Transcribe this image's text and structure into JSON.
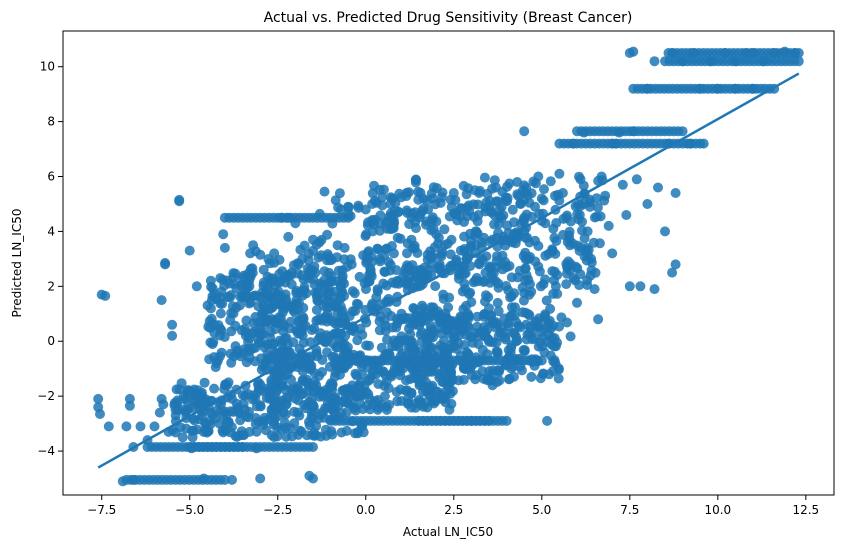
{
  "chart_data": {
    "type": "scatter",
    "title": "Actual vs. Predicted Drug Sensitivity (Breast Cancer)",
    "xlabel": "Actual LN_IC50",
    "ylabel": "Predicted LN_IC50",
    "xlim": [
      -8.6,
      13.3
    ],
    "ylim": [
      -5.6,
      11.3
    ],
    "xticks": [
      -7.5,
      -5.0,
      -2.5,
      0.0,
      2.5,
      5.0,
      7.5,
      10.0,
      12.5
    ],
    "xtick_labels": [
      "−7.5",
      "−5.0",
      "−2.5",
      "0.0",
      "2.5",
      "5.0",
      "7.5",
      "10.0",
      "12.5"
    ],
    "yticks": [
      -4,
      -2,
      0,
      2,
      4,
      6,
      8,
      10
    ],
    "ytick_labels": [
      "−4",
      "−2",
      "0",
      "2",
      "4",
      "6",
      "8",
      "10"
    ],
    "grid": false,
    "point_color": "#1f77b4",
    "line_color": "#1f77b4",
    "regression_line": {
      "x": [
        -7.6,
        12.3
      ],
      "y": [
        -4.6,
        9.75
      ]
    },
    "series": [
      {
        "points": [
          [
            -7.5,
            1.7
          ],
          [
            -7.4,
            1.65
          ],
          [
            -7.6,
            -2.1
          ],
          [
            -7.6,
            -2.4
          ],
          [
            -7.55,
            -2.65
          ],
          [
            -7.3,
            -3.1
          ],
          [
            -6.7,
            -2.1
          ],
          [
            -6.7,
            -2.35
          ],
          [
            -6.8,
            -3.1
          ],
          [
            -6.9,
            -5.1
          ],
          [
            -6.6,
            -5.05
          ],
          [
            -6.6,
            -3.85
          ],
          [
            -6.4,
            -3.1
          ],
          [
            -6.2,
            -3.6
          ],
          [
            -6.0,
            -3.1
          ],
          [
            -5.8,
            -2.1
          ],
          [
            -5.75,
            -2.3
          ],
          [
            -5.85,
            -2.6
          ],
          [
            -5.8,
            1.5
          ],
          [
            -5.7,
            2.8
          ],
          [
            -5.7,
            2.85
          ],
          [
            -5.5,
            0.6
          ],
          [
            -5.5,
            0.2
          ],
          [
            -5.6,
            -3.3
          ],
          [
            -5.4,
            -2.7
          ],
          [
            -5.3,
            5.1
          ],
          [
            -5.3,
            5.15
          ],
          [
            -5.2,
            -3.5
          ],
          [
            -5.1,
            -2.8
          ],
          [
            -4.95,
            -3.9
          ],
          [
            -4.7,
            -2.5
          ],
          [
            -4.6,
            -3.3
          ],
          [
            -4.4,
            -2.6
          ],
          [
            -4.3,
            0.6
          ],
          [
            -4.3,
            0.3
          ],
          [
            -4.2,
            -0.7
          ],
          [
            -4.1,
            1.8
          ],
          [
            -4.05,
            3.9
          ],
          [
            -4.0,
            3.4
          ],
          [
            -4.1,
            0.4
          ],
          [
            -3.9,
            -1.5
          ],
          [
            -3.8,
            -2.1
          ],
          [
            -3.6,
            -2.6
          ],
          [
            -3.5,
            2.3
          ],
          [
            -3.4,
            1.6
          ],
          [
            -3.3,
            -0.6
          ],
          [
            -3.3,
            -3.3
          ],
          [
            -3.1,
            -3.9
          ],
          [
            -3.0,
            0.4
          ],
          [
            -2.9,
            2.6
          ],
          [
            -2.8,
            1.9
          ],
          [
            -2.7,
            1.2
          ],
          [
            -2.6,
            -1.2
          ],
          [
            -2.5,
            -2.4
          ],
          [
            -2.4,
            4.5
          ],
          [
            -2.2,
            4.5
          ],
          [
            -2.0,
            4.3
          ],
          [
            -2.1,
            2.5
          ],
          [
            -1.9,
            1.4
          ],
          [
            -1.7,
            -0.8
          ],
          [
            -1.6,
            -2.2
          ],
          [
            -1.5,
            -5.0
          ],
          [
            -1.6,
            -4.9
          ],
          [
            -1.5,
            3.7
          ],
          [
            -1.3,
            2.1
          ],
          [
            -1.2,
            1.5
          ],
          [
            -1.1,
            -0.4
          ],
          [
            -0.9,
            -2.8
          ],
          [
            -0.8,
            3.5
          ],
          [
            -0.7,
            4.8
          ],
          [
            -0.5,
            4.9
          ],
          [
            -0.4,
            2.8
          ],
          [
            -0.3,
            1.1
          ],
          [
            -0.2,
            -1.6
          ],
          [
            -0.1,
            -3.1
          ],
          [
            0.0,
            4.8
          ],
          [
            0.2,
            4.0
          ],
          [
            0.3,
            1.6
          ],
          [
            0.4,
            0.4
          ],
          [
            0.5,
            -1.1
          ],
          [
            0.6,
            -2.5
          ],
          [
            0.7,
            5.0
          ],
          [
            0.8,
            3.2
          ],
          [
            0.9,
            2.2
          ],
          [
            1.0,
            0.8
          ],
          [
            1.1,
            -0.8
          ],
          [
            1.2,
            -2.1
          ],
          [
            1.3,
            3.7
          ],
          [
            1.4,
            4.7
          ],
          [
            1.5,
            2.4
          ],
          [
            1.6,
            1.3
          ],
          [
            1.7,
            -0.4
          ],
          [
            1.8,
            -1.8
          ],
          [
            1.9,
            5.2
          ],
          [
            2.0,
            3.9
          ],
          [
            2.1,
            2.8
          ],
          [
            2.2,
            1.7
          ],
          [
            2.3,
            0.4
          ],
          [
            2.4,
            -1.0
          ],
          [
            2.5,
            5.4
          ],
          [
            2.6,
            4.4
          ],
          [
            2.7,
            3.3
          ],
          [
            2.8,
            2.1
          ],
          [
            2.9,
            0.9
          ],
          [
            3.0,
            -2.9
          ],
          [
            3.1,
            5.5
          ],
          [
            3.2,
            4.6
          ],
          [
            3.3,
            3.6
          ],
          [
            3.4,
            2.5
          ],
          [
            3.5,
            1.2
          ],
          [
            3.6,
            -1.6
          ],
          [
            3.7,
            5.6
          ],
          [
            3.8,
            4.8
          ],
          [
            3.9,
            3.8
          ],
          [
            4.0,
            2.7
          ],
          [
            4.1,
            1.6
          ],
          [
            4.2,
            0.3
          ],
          [
            4.3,
            5.8
          ],
          [
            4.4,
            5.0
          ],
          [
            4.5,
            4.0
          ],
          [
            4.6,
            3.0
          ],
          [
            4.7,
            1.8
          ],
          [
            4.8,
            0.7
          ],
          [
            4.9,
            6.0
          ],
          [
            5.0,
            5.2
          ],
          [
            5.1,
            4.3
          ],
          [
            5.15,
            -2.9
          ],
          [
            5.3,
            3.3
          ],
          [
            5.4,
            2.0
          ],
          [
            5.5,
            6.1
          ],
          [
            5.6,
            5.4
          ],
          [
            5.7,
            4.5
          ],
          [
            5.8,
            3.5
          ],
          [
            5.9,
            2.3
          ],
          [
            6.0,
            1.4
          ],
          [
            6.1,
            5.9
          ],
          [
            6.2,
            5.0
          ],
          [
            6.3,
            4.0
          ],
          [
            6.4,
            3.0
          ],
          [
            6.5,
            1.9
          ],
          [
            6.6,
            0.8
          ],
          [
            6.7,
            6.0
          ],
          [
            6.8,
            5.3
          ],
          [
            6.9,
            4.2
          ],
          [
            7.0,
            3.2
          ],
          [
            7.1,
            7.2
          ],
          [
            7.2,
            7.6
          ],
          [
            7.3,
            5.7
          ],
          [
            7.4,
            4.6
          ],
          [
            7.5,
            2.0
          ],
          [
            7.6,
            7.65
          ],
          [
            7.7,
            5.9
          ],
          [
            7.8,
            2.0
          ],
          [
            8.0,
            5.0
          ],
          [
            8.2,
            1.9
          ],
          [
            8.3,
            5.6
          ],
          [
            8.5,
            4.0
          ],
          [
            8.6,
            7.2
          ],
          [
            8.8,
            5.4
          ],
          [
            8.8,
            2.8
          ],
          [
            8.7,
            2.5
          ],
          [
            9.2,
            7.2
          ],
          [
            9.6,
            7.2
          ],
          [
            7.5,
            10.5
          ],
          [
            7.6,
            10.55
          ],
          [
            8.2,
            10.2
          ],
          [
            8.7,
            10.5
          ],
          [
            9.0,
            10.2
          ],
          [
            9.3,
            10.5
          ],
          [
            9.8,
            10.2
          ],
          [
            10.2,
            10.5
          ],
          [
            10.5,
            10.2
          ],
          [
            10.8,
            10.5
          ],
          [
            11.0,
            10.5
          ],
          [
            11.3,
            10.2
          ],
          [
            11.6,
            10.5
          ],
          [
            11.9,
            10.55
          ],
          [
            12.2,
            10.5
          ],
          [
            8.0,
            9.2
          ],
          [
            9.5,
            9.2
          ],
          [
            10.0,
            9.2
          ],
          [
            10.5,
            9.2
          ],
          [
            11.0,
            9.2
          ],
          [
            7.0,
            7.2
          ],
          [
            6.2,
            7.6
          ],
          [
            5.9,
            7.2
          ],
          [
            4.5,
            7.65
          ],
          [
            -4.6,
            -5.0
          ],
          [
            -3.8,
            -5.05
          ],
          [
            -3.0,
            -5.0
          ],
          [
            -5.0,
            3.3
          ],
          [
            -4.8,
            2.0
          ],
          [
            -3.2,
            3.5
          ],
          [
            -2.6,
            3.2
          ],
          [
            -2.2,
            3.8
          ],
          [
            -1.8,
            3.0
          ],
          [
            -0.6,
            3.4
          ],
          [
            0.4,
            3.0
          ]
        ],
        "clusters": [
          {
            "x": [
              -1.5,
              6.0
            ],
            "y": [
              0.0,
              5.5
            ]
          },
          {
            "x": [
              0.0,
              6.8
            ],
            "y": [
              2.0,
              6.0
            ]
          },
          {
            "x": [
              -3.5,
              3.0
            ],
            "y": [
              -0.5,
              3.5
            ]
          },
          {
            "x": [
              -5.5,
              0.0
            ],
            "y": [
              -3.5,
              -1.5
            ]
          },
          {
            "x": [
              -3.0,
              2.5
            ],
            "y": [
              -2.5,
              -0.5
            ]
          },
          {
            "x": [
              -4.5,
              -0.5
            ],
            "y": [
              -1.0,
              2.5
            ]
          },
          {
            "x": [
              1.0,
              5.5
            ],
            "y": [
              -1.5,
              1.0
            ]
          }
        ],
        "bands": [
          {
            "x": [
              -6.8,
              -4.0
            ],
            "y": -5.05
          },
          {
            "x": [
              -6.2,
              -3.5
            ],
            "y": -3.85
          },
          {
            "x": [
              -5.0,
              -1.5
            ],
            "y": -3.85
          },
          {
            "x": [
              -1.0,
              3.5
            ],
            "y": -2.9
          },
          {
            "x": [
              1.5,
              4.0
            ],
            "y": -2.9
          },
          {
            "x": [
              -4.0,
              -0.5
            ],
            "y": 4.5
          },
          {
            "x": [
              5.5,
              9.5
            ],
            "y": 7.2
          },
          {
            "x": [
              6.0,
              9.0
            ],
            "y": 7.65
          },
          {
            "x": [
              7.6,
              11.6
            ],
            "y": 9.2
          },
          {
            "x": [
              8.5,
              12.3
            ],
            "y": 10.2
          },
          {
            "x": [
              8.6,
              12.3
            ],
            "y": 10.5
          },
          {
            "x": [
              -0.5,
              5.0
            ],
            "y": -0.7
          }
        ]
      }
    ]
  }
}
